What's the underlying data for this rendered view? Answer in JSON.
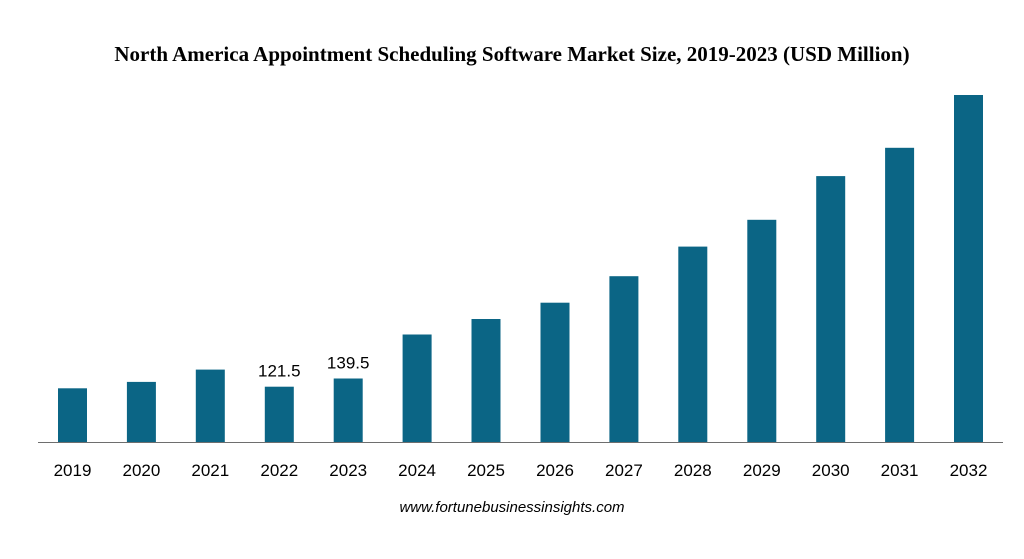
{
  "chart_data": {
    "type": "bar",
    "title": "North America Appointment Scheduling Software Market Size, 2019-2023 (USD Million)",
    "categories": [
      "2019",
      "2020",
      "2021",
      "2022",
      "2023",
      "2024",
      "2025",
      "2026",
      "2027",
      "2028",
      "2029",
      "2030",
      "2031",
      "2032"
    ],
    "values": [
      118,
      132,
      159,
      121.5,
      139.5,
      236,
      270,
      306,
      364,
      429,
      488,
      584,
      646,
      762
    ],
    "data_labels": [
      {
        "category": "2022",
        "text": "121.5"
      },
      {
        "category": "2023",
        "text": "139.5"
      }
    ],
    "ylim": [
      0,
      762
    ],
    "bar_color": "#0b6585",
    "grid": false,
    "legend": "none",
    "xlabel": "",
    "ylabel": ""
  },
  "footer": {
    "source": "www.fortunebusinessinsights.com"
  }
}
